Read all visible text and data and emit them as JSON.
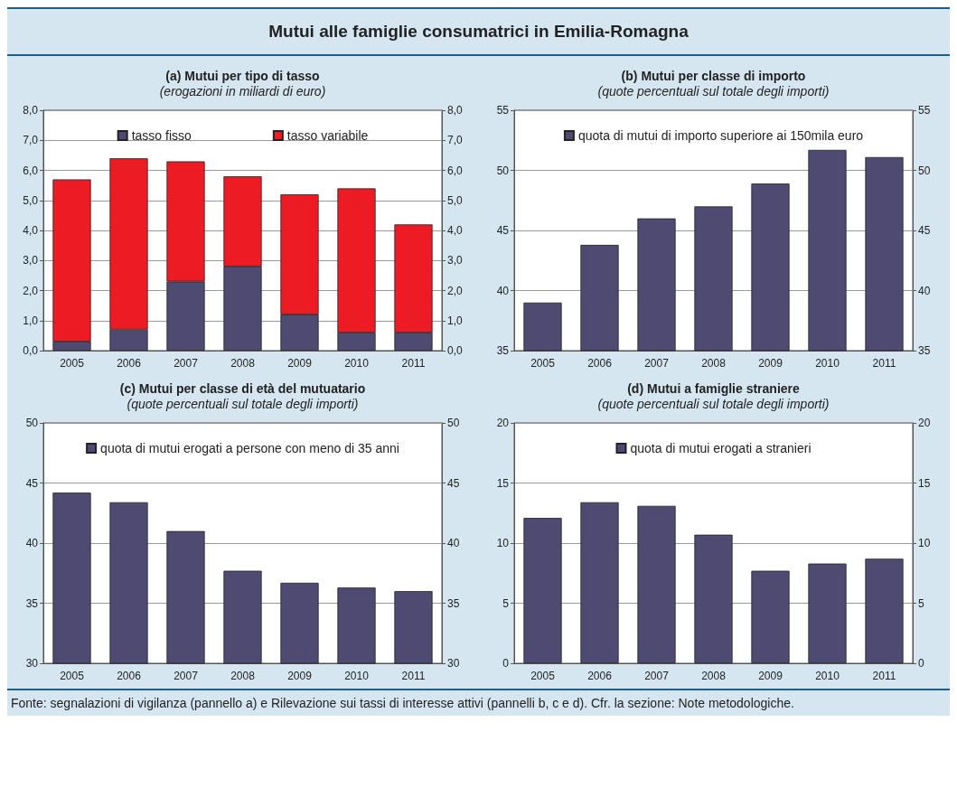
{
  "chart_data": [
    {
      "type": "bar",
      "title": "(a) Mutui per tipo di tasso",
      "subtitle": "(erogazioni in miliardi di euro)",
      "annotations": [
        "Mutui alle famiglie consumatrici in Emilia-Romagna"
      ],
      "categories": [
        "2005",
        "2006",
        "2007",
        "2008",
        "2009",
        "2010",
        "2011"
      ],
      "stacked": true,
      "series": [
        {
          "name": "tasso fisso",
          "color": "#4f4a72",
          "values": [
            0.3,
            0.7,
            2.3,
            2.8,
            1.2,
            0.6,
            0.6
          ]
        },
        {
          "name": "tasso variabile",
          "color": "#ed1c24",
          "values": [
            5.4,
            5.7,
            4.0,
            3.0,
            4.0,
            4.8,
            3.6
          ]
        }
      ],
      "ylim": [
        0,
        8
      ],
      "yticks": [
        {
          "value": 0,
          "label": "0,0"
        },
        {
          "value": 1,
          "label": "1,0"
        },
        {
          "value": 2,
          "label": "2,0"
        },
        {
          "value": 3,
          "label": "3,0"
        },
        {
          "value": 4,
          "label": "4,0"
        },
        {
          "value": 5,
          "label": "5,0"
        },
        {
          "value": 6,
          "label": "6,0"
        },
        {
          "value": 7,
          "label": "7,0"
        },
        {
          "value": 8,
          "label": "8,0"
        }
      ],
      "y2lim": [
        0,
        8
      ],
      "y2ticks": [
        {
          "value": 0,
          "label": "0,0"
        },
        {
          "value": 1,
          "label": "1,0"
        },
        {
          "value": 2,
          "label": "2,0"
        },
        {
          "value": 3,
          "label": "3,0"
        },
        {
          "value": 4,
          "label": "4,0"
        },
        {
          "value": 5,
          "label": "5,0"
        },
        {
          "value": 6,
          "label": "6,0"
        },
        {
          "value": 7,
          "label": "7,0"
        },
        {
          "value": 8,
          "label": "8,0"
        }
      ],
      "grid": "y",
      "legend": "top"
    },
    {
      "type": "bar",
      "title": "(b) Mutui per classe di importo",
      "subtitle": "(quote percentuali sul totale degli importi)",
      "categories": [
        "2005",
        "2006",
        "2007",
        "2008",
        "2009",
        "2010",
        "2011"
      ],
      "series": [
        {
          "name": "quota di mutui di importo superiore ai 150mila euro",
          "color": "#4f4a72",
          "values": [
            39.0,
            43.8,
            46.0,
            47.0,
            48.9,
            51.7,
            51.1
          ]
        }
      ],
      "ylim": [
        35,
        55
      ],
      "yticks": [
        35,
        40,
        45,
        50,
        55
      ],
      "y2lim": [
        35,
        55
      ],
      "y2ticks": [
        35,
        40,
        45,
        50,
        55
      ],
      "grid": "y",
      "legend": "top"
    },
    {
      "type": "bar",
      "title": "(c) Mutui per classe di età del mutuatario",
      "subtitle": "(quote percentuali sul totale degli importi)",
      "categories": [
        "2005",
        "2006",
        "2007",
        "2008",
        "2009",
        "2010",
        "2011"
      ],
      "series": [
        {
          "name": "quota di mutui erogati a persone con meno di 35 anni",
          "color": "#4f4a72",
          "values": [
            44.2,
            43.4,
            41.0,
            37.7,
            36.7,
            36.3,
            36.0
          ]
        }
      ],
      "ylim": [
        30,
        50
      ],
      "yticks": [
        30,
        35,
        40,
        45,
        50
      ],
      "y2lim": [
        30,
        50
      ],
      "y2ticks": [
        30,
        35,
        40,
        45,
        50
      ],
      "grid": "y",
      "legend": "top"
    },
    {
      "type": "bar",
      "title": "(d) Mutui a famiglie straniere",
      "subtitle": "(quote percentuali sul totale degli importi)",
      "annotations": [
        "Fonte: segnalazioni di vigilanza (pannello a) e Rilevazione sui tassi di interesse attivi (pannelli b, c e d). Cfr. la sezione: Note metodologiche."
      ],
      "categories": [
        "2005",
        "2006",
        "2007",
        "2008",
        "2009",
        "2010",
        "2011"
      ],
      "series": [
        {
          "name": "quota di mutui erogati a stranieri",
          "color": "#4f4a72",
          "values": [
            12.1,
            13.4,
            13.1,
            10.7,
            7.7,
            8.3,
            8.7
          ]
        }
      ],
      "ylim": [
        0,
        20
      ],
      "yticks": [
        0,
        5,
        10,
        15,
        20
      ],
      "y2lim": [
        0,
        20
      ],
      "y2ticks": [
        0,
        5,
        10,
        15,
        20
      ],
      "grid": "y",
      "legend": "top"
    }
  ]
}
